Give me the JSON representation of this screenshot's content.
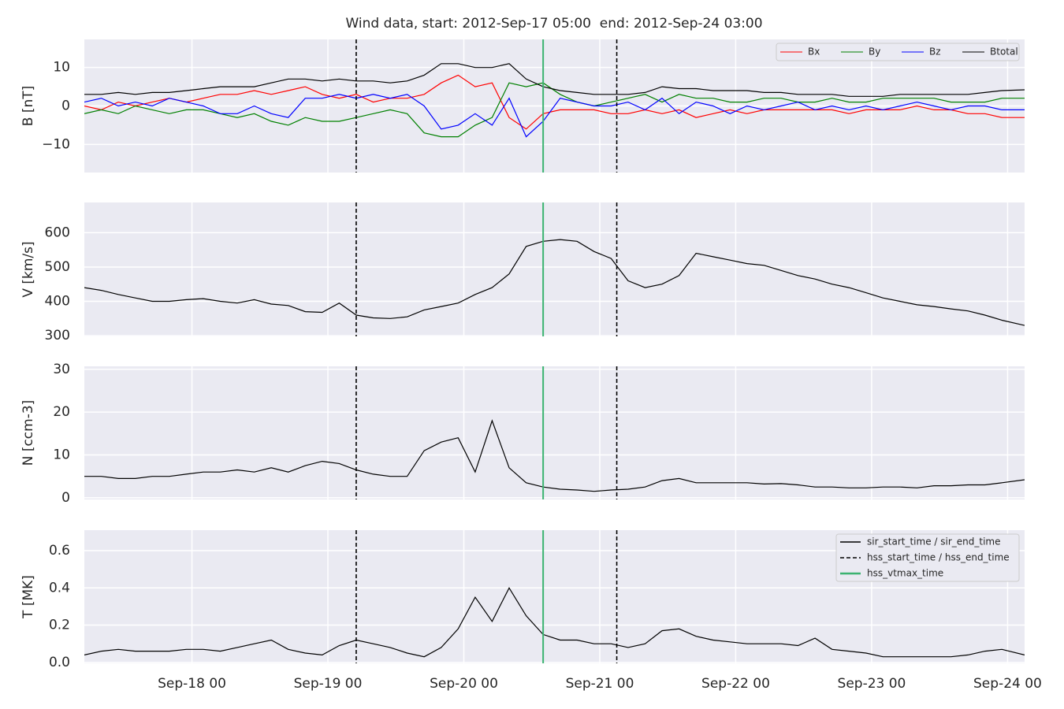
{
  "chart_data": {
    "type": "line",
    "title": "Wind data, start: 2012-Sep-17 05:00  end: 2012-Sep-24 03:00",
    "grid": true,
    "x": [
      "Sep-17 05",
      "Sep-17 08",
      "Sep-17 11",
      "Sep-17 14",
      "Sep-17 17",
      "Sep-17 20",
      "Sep-17 23",
      "Sep-18 02",
      "Sep-18 05",
      "Sep-18 08",
      "Sep-18 11",
      "Sep-18 14",
      "Sep-18 17",
      "Sep-18 20",
      "Sep-18 23",
      "Sep-19 02",
      "Sep-19 05",
      "Sep-19 08",
      "Sep-19 11",
      "Sep-19 14",
      "Sep-19 17",
      "Sep-19 20",
      "Sep-19 23",
      "Sep-20 02",
      "Sep-20 05",
      "Sep-20 08",
      "Sep-20 11",
      "Sep-20 14",
      "Sep-20 17",
      "Sep-20 20",
      "Sep-20 23",
      "Sep-21 02",
      "Sep-21 05",
      "Sep-21 08",
      "Sep-21 11",
      "Sep-21 14",
      "Sep-21 17",
      "Sep-21 20",
      "Sep-21 23",
      "Sep-22 02",
      "Sep-22 05",
      "Sep-22 08",
      "Sep-22 11",
      "Sep-22 14",
      "Sep-22 17",
      "Sep-22 20",
      "Sep-22 23",
      "Sep-23 02",
      "Sep-23 05",
      "Sep-23 08",
      "Sep-23 11",
      "Sep-23 14",
      "Sep-23 17",
      "Sep-23 20",
      "Sep-23 23",
      "Sep-24 03"
    ],
    "xlim": [
      "Sep-17 05",
      "Sep-24 03"
    ],
    "xticks": [
      "Sep-18 00",
      "Sep-19 00",
      "Sep-20 00",
      "Sep-21 00",
      "Sep-22 00",
      "Sep-23 00",
      "Sep-24 00"
    ],
    "events": [
      {
        "name": "sir_start_time / sir_end_time",
        "style": "solid",
        "color": "#000000",
        "times": []
      },
      {
        "name": "hss_start_time / hss_end_time",
        "style": "dashed",
        "color": "#000000",
        "times": [
          "Sep-19 05",
          "Sep-21 03"
        ]
      },
      {
        "name": "hss_vtmax_time",
        "style": "solid",
        "color": "#3cb371",
        "times": [
          "Sep-20 14"
        ]
      }
    ],
    "panels": [
      {
        "ylabel": "B [nT]",
        "ylim": [
          -17.3,
          17.3
        ],
        "yticks": [
          {
            "value": -10,
            "label": "−10"
          },
          0,
          10
        ],
        "legend": "upper right",
        "series": [
          {
            "name": "Bx",
            "color": "#ff0000",
            "values": [
              0,
              -1,
              1,
              0,
              1,
              2,
              1,
              2,
              3,
              3,
              4,
              3,
              4,
              5,
              3,
              2,
              3,
              1,
              2,
              2,
              3,
              6,
              8,
              5,
              6,
              -3,
              -6,
              -2,
              -1,
              -1,
              -1,
              -2,
              -2,
              -1,
              -2,
              -1,
              -3,
              -2,
              -1,
              -2,
              -1,
              -1,
              -1,
              -1,
              -1,
              -2,
              -1,
              -1,
              -1,
              0,
              -1,
              -1,
              -2,
              -2,
              -3,
              -3
            ]
          },
          {
            "name": "By",
            "color": "#008000",
            "values": [
              -2,
              -1,
              -2,
              0,
              -1,
              -2,
              -1,
              -1,
              -2,
              -3,
              -2,
              -4,
              -5,
              -3,
              -4,
              -4,
              -3,
              -2,
              -1,
              -2,
              -7,
              -8,
              -8,
              -5,
              -3,
              6,
              5,
              6,
              3,
              1,
              0,
              1,
              2,
              3,
              1,
              3,
              2,
              2,
              1,
              1,
              2,
              2,
              1,
              1,
              2,
              1,
              1,
              2,
              2,
              2,
              2,
              1,
              1,
              1,
              2,
              2
            ]
          },
          {
            "name": "Bz",
            "color": "#0000ff",
            "values": [
              1,
              2,
              0,
              1,
              0,
              2,
              1,
              0,
              -2,
              -2,
              0,
              -2,
              -3,
              2,
              2,
              3,
              2,
              3,
              2,
              3,
              0,
              -6,
              -5,
              -2,
              -5,
              2,
              -8,
              -4,
              2,
              1,
              0,
              0,
              1,
              -1,
              2,
              -2,
              1,
              0,
              -2,
              0,
              -1,
              0,
              1,
              -1,
              0,
              -1,
              0,
              -1,
              0,
              1,
              0,
              -1,
              0,
              0,
              -1,
              -1
            ]
          },
          {
            "name": "Btotal",
            "color": "#000000",
            "values": [
              3,
              3,
              3.5,
              3,
              3.5,
              3.5,
              4,
              4.5,
              5,
              5,
              5,
              6,
              7,
              7,
              6.5,
              7,
              6.5,
              6.5,
              6,
              6.5,
              8,
              11,
              11,
              10,
              10,
              11,
              7,
              5,
              4,
              3.5,
              3,
              3,
              3,
              3.5,
              5,
              4.5,
              4.5,
              4,
              4,
              4,
              3.5,
              3.5,
              3,
              3,
              3,
              2.5,
              2.5,
              2.5,
              3,
              3,
              3,
              3,
              3,
              3.5,
              4,
              4.2
            ]
          }
        ]
      },
      {
        "ylabel": "V [km/s]",
        "ylim": [
          298,
          688
        ],
        "yticks": [
          300,
          400,
          500,
          600
        ],
        "series": [
          {
            "color": "#000000",
            "values": [
              440,
              432,
              420,
              410,
              400,
              400,
              405,
              408,
              400,
              395,
              405,
              392,
              388,
              370,
              368,
              395,
              360,
              352,
              350,
              355,
              375,
              385,
              395,
              420,
              440,
              480,
              560,
              575,
              580,
              575,
              545,
              525,
              460,
              440,
              450,
              475,
              540,
              530,
              520,
              510,
              505,
              490,
              475,
              465,
              450,
              440,
              425,
              410,
              400,
              390,
              385,
              378,
              372,
              360,
              345,
              330
            ]
          }
        ]
      },
      {
        "ylabel": "N [ccm-3]",
        "ylim": [
          -0.4,
          30.7
        ],
        "yticks": [
          0,
          10,
          20,
          30
        ],
        "series": [
          {
            "color": "#000000",
            "values": [
              5,
              5,
              4.5,
              4.5,
              5,
              5,
              5.5,
              6,
              6,
              6.5,
              6,
              7,
              6,
              7.5,
              8.5,
              8,
              6.5,
              5.5,
              5,
              5,
              11,
              13,
              14,
              6,
              18,
              7,
              3.5,
              2.5,
              2,
              1.8,
              1.5,
              1.8,
              2,
              2.5,
              4,
              4.5,
              3.5,
              3.5,
              3.5,
              3.5,
              3.2,
              3.3,
              3,
              2.5,
              2.5,
              2.3,
              2.3,
              2.5,
              2.5,
              2.3,
              2.8,
              2.8,
              3,
              3,
              3.5,
              4.2
            ]
          }
        ]
      },
      {
        "ylabel": "T [MK]",
        "ylim": [
          -0.005,
          0.71
        ],
        "yticks": [
          {
            "value": 0,
            "label": "0.0"
          },
          0.2,
          0.4,
          0.6
        ],
        "legend": "upper right",
        "series": [
          {
            "color": "#000000",
            "values": [
              0.04,
              0.06,
              0.07,
              0.06,
              0.06,
              0.06,
              0.07,
              0.07,
              0.06,
              0.08,
              0.1,
              0.12,
              0.07,
              0.05,
              0.04,
              0.09,
              0.12,
              0.1,
              0.08,
              0.05,
              0.03,
              0.08,
              0.18,
              0.35,
              0.22,
              0.4,
              0.25,
              0.15,
              0.12,
              0.12,
              0.1,
              0.1,
              0.08,
              0.1,
              0.17,
              0.18,
              0.14,
              0.12,
              0.11,
              0.1,
              0.1,
              0.1,
              0.09,
              0.13,
              0.07,
              0.06,
              0.05,
              0.03,
              0.03,
              0.03,
              0.03,
              0.03,
              0.04,
              0.06,
              0.07,
              0.04
            ]
          }
        ]
      }
    ]
  }
}
